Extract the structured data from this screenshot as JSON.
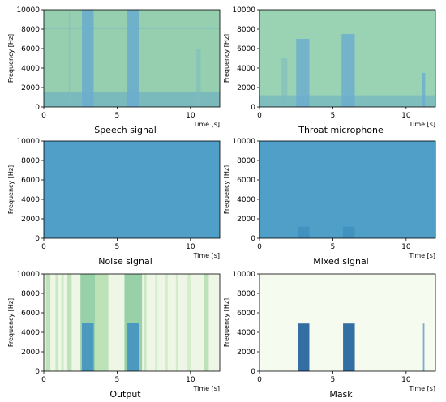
{
  "chart_data": [
    {
      "type": "heatmap",
      "title": "Speech signal",
      "xlabel": "Time [s]",
      "ylabel": "Frequency [Hz]",
      "xlim": [
        0,
        12
      ],
      "ylim": [
        0,
        10000
      ],
      "xticks": [
        0,
        5,
        10
      ],
      "yticks": [
        0,
        2000,
        4000,
        6000,
        8000,
        10000
      ],
      "colormap": "blue-green",
      "background": "#96cfb0",
      "bands": [
        {
          "t0": 1.7,
          "t1": 1.8,
          "fmax": 9800,
          "color": "#7fbcc0",
          "opacity": 0.5
        },
        {
          "t0": 2.6,
          "t1": 3.4,
          "fmax": 10000,
          "color": "#6aaccf",
          "opacity": 0.85
        },
        {
          "t0": 5.7,
          "t1": 6.5,
          "fmax": 10000,
          "color": "#6aaccf",
          "opacity": 0.85
        },
        {
          "t0": 10.4,
          "t1": 10.7,
          "fmax": 6000,
          "color": "#7fbcc0",
          "opacity": 0.6
        }
      ],
      "lowband": {
        "fmax": 1500,
        "color": "#5ea6c8",
        "opacity": 0.5
      },
      "hline": {
        "f": 8100,
        "color": "#6aaccf"
      }
    },
    {
      "type": "heatmap",
      "title": "Throat microphone",
      "xlabel": "Time [s]",
      "ylabel": "Frequency [Hz]",
      "xlim": [
        0,
        12
      ],
      "ylim": [
        0,
        10000
      ],
      "xticks": [
        0,
        5,
        10
      ],
      "yticks": [
        0,
        2000,
        4000,
        6000,
        8000,
        10000
      ],
      "colormap": "blue-green",
      "background": "#9ad3b4",
      "bands": [
        {
          "t0": 1.5,
          "t1": 1.9,
          "fmax": 5000,
          "color": "#7fbcc0",
          "opacity": 0.6
        },
        {
          "t0": 2.5,
          "t1": 3.4,
          "fmax": 7000,
          "color": "#6aaccf",
          "opacity": 0.8
        },
        {
          "t0": 5.6,
          "t1": 6.5,
          "fmax": 7500,
          "color": "#6aaccf",
          "opacity": 0.8
        },
        {
          "t0": 11.1,
          "t1": 11.3,
          "fmax": 3500,
          "color": "#6aaccf",
          "opacity": 0.8
        }
      ],
      "lowband": {
        "fmax": 1200,
        "color": "#5ea6c8",
        "opacity": 0.45
      },
      "hline": null
    },
    {
      "type": "heatmap",
      "title": "Noise signal",
      "xlabel": "Time [s]",
      "ylabel": "Frequency [Hz]",
      "xlim": [
        0,
        12
      ],
      "ylim": [
        0,
        10000
      ],
      "xticks": [
        0,
        5,
        10
      ],
      "yticks": [
        0,
        2000,
        4000,
        6000,
        8000,
        10000
      ],
      "colormap": "blue",
      "background": "#4f9fc9",
      "bands": [],
      "lowband": null,
      "hline": null
    },
    {
      "type": "heatmap",
      "title": "Mixed signal",
      "xlabel": "Time [s]",
      "ylabel": "Frequency [Hz]",
      "xlim": [
        0,
        12
      ],
      "ylim": [
        0,
        10000
      ],
      "xticks": [
        0,
        5,
        10
      ],
      "yticks": [
        0,
        2000,
        4000,
        6000,
        8000,
        10000
      ],
      "colormap": "blue",
      "background": "#4f9fc9",
      "bands": [
        {
          "t0": 2.6,
          "t1": 3.4,
          "fmax": 1200,
          "color": "#3f8fbd",
          "opacity": 0.8
        },
        {
          "t0": 5.7,
          "t1": 6.5,
          "fmax": 1200,
          "color": "#3f8fbd",
          "opacity": 0.8
        }
      ],
      "lowband": null,
      "hline": null
    },
    {
      "type": "heatmap",
      "title": "Output",
      "xlabel": "Time [s]",
      "ylabel": "Frequency [Hz]",
      "xlim": [
        0,
        12
      ],
      "ylim": [
        0,
        10000
      ],
      "xticks": [
        0,
        5,
        10
      ],
      "yticks": [
        0,
        2000,
        4000,
        6000,
        8000,
        10000
      ],
      "colormap": "green",
      "background": "#eef7e6",
      "bands": [
        {
          "t0": 0.15,
          "t1": 0.45,
          "fmax": 10000,
          "color": "#b9e0b4",
          "opacity": 0.9
        },
        {
          "t0": 0.8,
          "t1": 1.0,
          "fmax": 10000,
          "color": "#c6e6bf",
          "opacity": 0.9
        },
        {
          "t0": 1.2,
          "t1": 1.35,
          "fmax": 10000,
          "color": "#c6e6bf",
          "opacity": 0.9
        },
        {
          "t0": 1.6,
          "t1": 1.9,
          "fmax": 10000,
          "color": "#b9e0b4",
          "opacity": 0.9
        },
        {
          "t0": 2.5,
          "t1": 3.5,
          "fmax": 10000,
          "color": "#98d0a8",
          "opacity": 1
        },
        {
          "t0": 3.5,
          "t1": 4.4,
          "fmax": 10000,
          "color": "#b9e0b4",
          "opacity": 0.95
        },
        {
          "t0": 5.5,
          "t1": 6.7,
          "fmax": 10000,
          "color": "#98d0a8",
          "opacity": 1
        },
        {
          "t0": 6.8,
          "t1": 7.0,
          "fmax": 10000,
          "color": "#c6e6bf",
          "opacity": 0.9
        },
        {
          "t0": 7.6,
          "t1": 7.75,
          "fmax": 10000,
          "color": "#cfeac6",
          "opacity": 0.9
        },
        {
          "t0": 8.3,
          "t1": 8.45,
          "fmax": 10000,
          "color": "#cfeac6",
          "opacity": 0.9
        },
        {
          "t0": 9.0,
          "t1": 9.15,
          "fmax": 10000,
          "color": "#cfeac6",
          "opacity": 0.9
        },
        {
          "t0": 9.8,
          "t1": 10.0,
          "fmax": 10000,
          "color": "#cfeac6",
          "opacity": 0.9
        },
        {
          "t0": 10.9,
          "t1": 11.25,
          "fmax": 10000,
          "color": "#b9e0b4",
          "opacity": 0.95
        },
        {
          "t0": 2.6,
          "t1": 3.4,
          "fmax": 5000,
          "color": "#3d8fc2",
          "opacity": 0.85
        },
        {
          "t0": 5.7,
          "t1": 6.5,
          "fmax": 5000,
          "color": "#3d8fc2",
          "opacity": 0.85
        }
      ],
      "lowband": null,
      "hline": null
    },
    {
      "type": "heatmap",
      "title": "Mask",
      "xlabel": "Time [s]",
      "ylabel": "Frequency [Hz]",
      "xlim": [
        0,
        12
      ],
      "ylim": [
        0,
        10000
      ],
      "xticks": [
        0,
        5,
        10
      ],
      "yticks": [
        0,
        2000,
        4000,
        6000,
        8000,
        10000
      ],
      "colormap": "white-blue",
      "background": "#f6fbef",
      "bands": [
        {
          "t0": 2.6,
          "t1": 3.4,
          "fmax": 4900,
          "color": "#1f5f9a",
          "opacity": 0.9
        },
        {
          "t0": 5.7,
          "t1": 6.5,
          "fmax": 4900,
          "color": "#1f5f9a",
          "opacity": 0.9
        },
        {
          "t0": 11.15,
          "t1": 11.25,
          "fmax": 4900,
          "color": "#5f96c4",
          "opacity": 0.8
        }
      ],
      "lowband": null,
      "hline": null
    }
  ]
}
